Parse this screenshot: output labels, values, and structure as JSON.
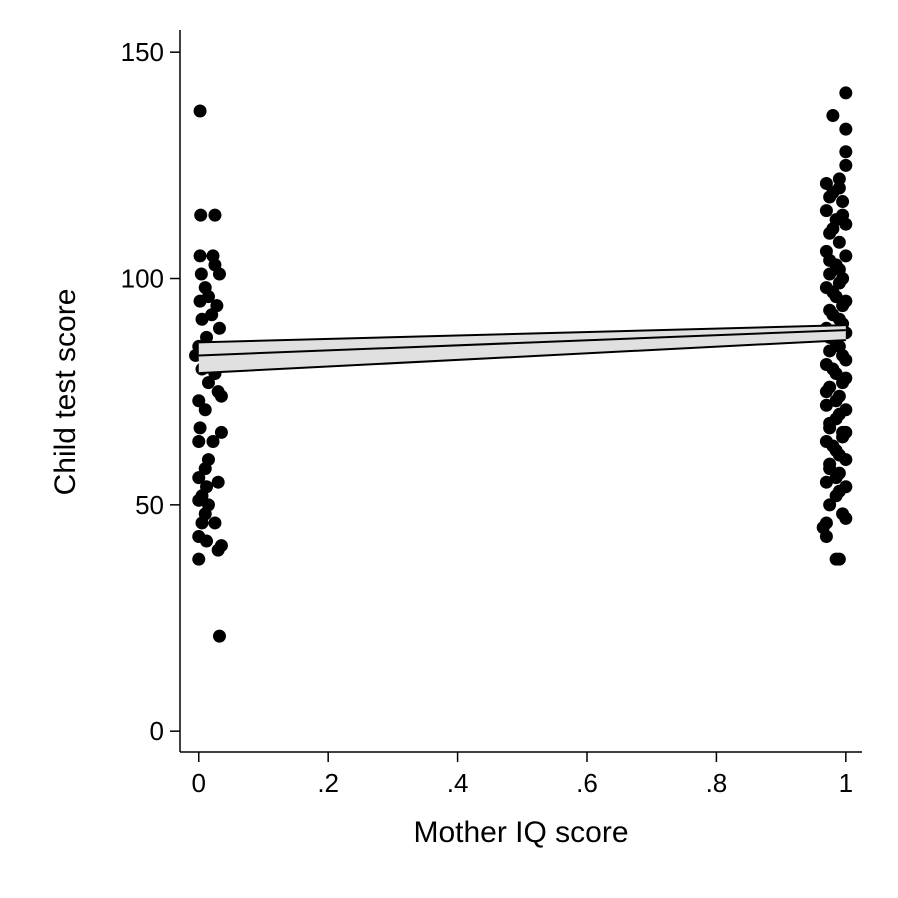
{
  "chart_data": {
    "type": "scatter",
    "x_label": "Mother IQ score",
    "y_label": "Child test score",
    "xlim": [
      -0.029,
      1.025
    ],
    "ylim": [
      -4.6,
      154.9
    ],
    "xticks": [
      0,
      {
        "value": 0.2,
        "label": ".2"
      },
      {
        "value": 0.4,
        "label": ".4"
      },
      {
        "value": 0.6,
        "label": ".6"
      },
      {
        "value": 0.8,
        "label": ".8"
      },
      1
    ],
    "yticks": [
      0,
      50,
      100,
      150
    ],
    "points": {
      "color": "#000000",
      "x": [
        0.002,
        0.003,
        0.025,
        0.002,
        0.022,
        0.025,
        0.032,
        0.004,
        0.01,
        0.015,
        0.002,
        0.028,
        0.02,
        0.005,
        0.032,
        0.012,
        0.0,
        -0.005,
        0.01,
        0.005,
        0.025,
        0.015,
        0.03,
        0.035,
        0.0,
        0.01,
        0.002,
        0.035,
        0.022,
        0.0,
        0.015,
        0.01,
        0.0,
        0.03,
        0.012,
        0.005,
        0.0,
        0.015,
        0.01,
        0.025,
        0.005,
        0.0,
        0.012,
        0.035,
        0.03,
        0.0,
        0.032,
        0.98,
        1.0,
        1.0,
        1.0,
        1.0,
        0.99,
        0.97,
        0.98,
        0.995,
        0.97,
        0.985,
        1.0,
        0.975,
        0.99,
        0.97,
        1.0,
        0.985,
        0.975,
        0.995,
        0.97,
        0.985,
        1.0,
        0.975,
        0.99,
        0.97,
        1.0,
        0.985,
        0.975,
        0.995,
        0.97,
        0.985,
        1.0,
        0.975,
        0.99,
        0.97,
        1.0,
        0.985,
        0.975,
        0.995,
        0.97,
        0.985,
        1.0,
        0.975,
        0.99,
        0.97,
        1.0,
        0.985,
        0.975,
        0.995,
        0.97,
        1.0,
        0.97,
        0.99,
        0.985,
        0.965,
        0.99,
        0.98,
        0.995,
        0.975,
        0.99,
        0.98,
        0.995,
        0.97,
        0.985,
        0.99,
        0.975,
        0.995,
        0.98,
        0.99,
        0.975,
        0.985,
        0.99,
        0.98,
        0.995,
        0.975,
        0.99,
        0.98,
        0.995,
        1.0,
        1.0,
        0.975,
        0.99
      ],
      "y": [
        137,
        114,
        114,
        105,
        105,
        103,
        101,
        101,
        98,
        96,
        95,
        94,
        92,
        91,
        89,
        87,
        85,
        83,
        82,
        80,
        79,
        77,
        75,
        74,
        73,
        71,
        67,
        66,
        64,
        64,
        60,
        58,
        56,
        55,
        54,
        52,
        51,
        50,
        48,
        46,
        46,
        43,
        42,
        41,
        40,
        38,
        21,
        136,
        141,
        133,
        128,
        125,
        122,
        121,
        119,
        117,
        115,
        113,
        112,
        110,
        108,
        106,
        105,
        103,
        101,
        100,
        98,
        96,
        95,
        93,
        91,
        89,
        88,
        86,
        84,
        83,
        81,
        79,
        78,
        76,
        74,
        72,
        71,
        69,
        67,
        65,
        64,
        62,
        60,
        58,
        57,
        55,
        54,
        52,
        50,
        48,
        46,
        47,
        43,
        38,
        38,
        45,
        99,
        92,
        90,
        87,
        85,
        80,
        77,
        75,
        73,
        70,
        68,
        66,
        63,
        61,
        59,
        56,
        53,
        111,
        114,
        104,
        102,
        97,
        94,
        82,
        66,
        118,
        120
      ]
    },
    "fit": {
      "x": [
        0,
        1
      ],
      "y": [
        83.0,
        88.6
      ],
      "lower": [
        79.1,
        86.4
      ],
      "upper": [
        85.9,
        89.7
      ],
      "color": "#000000",
      "band_color": "#e0e0e0"
    }
  }
}
